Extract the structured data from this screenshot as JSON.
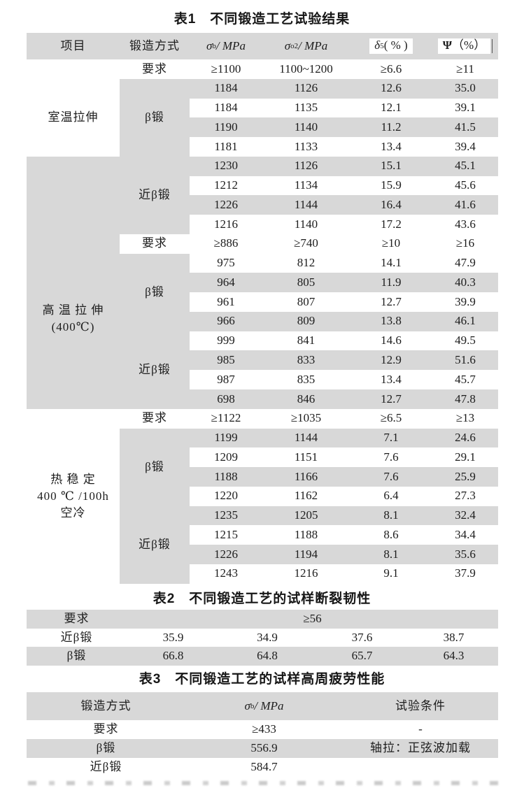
{
  "colors": {
    "row_shade": "#d8d8d8",
    "text": "#1d1d1d",
    "paper": "#ffffff"
  },
  "table1": {
    "title": "表1　不同锻造工艺试验结果",
    "header": {
      "item": "项目",
      "method": "锻造方式",
      "sigma_b": {
        "sym": "σ",
        "sub": "b",
        "unit": " / MPa"
      },
      "sigma_o2": {
        "sym": "σ",
        "sub": "o2",
        "unit": " / MPa"
      },
      "delta5": {
        "sym": "δ",
        "sub": "5",
        "unit": "( % )"
      },
      "psi": {
        "sym": "Ψ",
        "unit": "（%）"
      }
    },
    "req_label": "要求",
    "items": [
      {
        "name": "room-temp-tensile",
        "lines": [
          "室温拉伸"
        ]
      },
      {
        "name": "high-temp-tensile",
        "lines": [
          "高 温 拉 伸",
          "(400℃)"
        ]
      },
      {
        "name": "thermal-stability",
        "lines": [
          "热  稳  定",
          "400 ℃ /100h",
          "空冷"
        ]
      }
    ],
    "methods": {
      "beta": "β锻",
      "near_beta": "近β锻"
    },
    "rows": [
      {
        "kind": "req",
        "shade": false,
        "cells": [
          "≥1100",
          "1100~1200",
          "≥6.6",
          "≥11"
        ]
      },
      {
        "kind": "data",
        "shade": true,
        "cells": [
          "1184",
          "1126",
          "12.6",
          "35.0"
        ]
      },
      {
        "kind": "data",
        "shade": false,
        "cells": [
          "1184",
          "1135",
          "12.1",
          "39.1"
        ]
      },
      {
        "kind": "data",
        "shade": true,
        "cells": [
          "1190",
          "1140",
          "11.2",
          "41.5"
        ]
      },
      {
        "kind": "data",
        "shade": false,
        "cells": [
          "1181",
          "1133",
          "13.4",
          "39.4"
        ]
      },
      {
        "kind": "data",
        "shade": true,
        "cells": [
          "1230",
          "1126",
          "15.1",
          "45.1"
        ]
      },
      {
        "kind": "data",
        "shade": false,
        "cells": [
          "1212",
          "1134",
          "15.9",
          "45.6"
        ]
      },
      {
        "kind": "data",
        "shade": true,
        "cells": [
          "1226",
          "1144",
          "16.4",
          "41.6"
        ]
      },
      {
        "kind": "data",
        "shade": false,
        "cells": [
          "1216",
          "1140",
          "17.2",
          "43.6"
        ]
      },
      {
        "kind": "req",
        "shade": false,
        "cells": [
          "≥886",
          "≥740",
          "≥10",
          "≥16"
        ]
      },
      {
        "kind": "data",
        "shade": false,
        "cells": [
          "975",
          "812",
          "14.1",
          "47.9"
        ]
      },
      {
        "kind": "data",
        "shade": true,
        "cells": [
          "964",
          "805",
          "11.9",
          "40.3"
        ]
      },
      {
        "kind": "data",
        "shade": false,
        "cells": [
          "961",
          "807",
          "12.7",
          "39.9"
        ]
      },
      {
        "kind": "data",
        "shade": true,
        "cells": [
          "966",
          "809",
          "13.8",
          "46.1"
        ]
      },
      {
        "kind": "data",
        "shade": false,
        "cells": [
          "999",
          "841",
          "14.6",
          "49.5"
        ]
      },
      {
        "kind": "data",
        "shade": true,
        "cells": [
          "985",
          "833",
          "12.9",
          "51.6"
        ]
      },
      {
        "kind": "data",
        "shade": false,
        "cells": [
          "987",
          "835",
          "13.4",
          "45.7"
        ]
      },
      {
        "kind": "data",
        "shade": true,
        "cells": [
          "698",
          "846",
          "12.7",
          "47.8"
        ]
      },
      {
        "kind": "req",
        "shade": false,
        "cells": [
          "≥1122",
          "≥1035",
          "≥6.5",
          "≥13"
        ]
      },
      {
        "kind": "data",
        "shade": true,
        "cells": [
          "1199",
          "1144",
          "7.1",
          "24.6"
        ]
      },
      {
        "kind": "data",
        "shade": false,
        "cells": [
          "1209",
          "1151",
          "7.6",
          "29.1"
        ]
      },
      {
        "kind": "data",
        "shade": true,
        "cells": [
          "1188",
          "1166",
          "7.6",
          "25.9"
        ]
      },
      {
        "kind": "data",
        "shade": false,
        "cells": [
          "1220",
          "1162",
          "6.4",
          "27.3"
        ]
      },
      {
        "kind": "data",
        "shade": true,
        "cells": [
          "1235",
          "1205",
          "8.1",
          "32.4"
        ]
      },
      {
        "kind": "data",
        "shade": false,
        "cells": [
          "1215",
          "1188",
          "8.6",
          "34.4"
        ]
      },
      {
        "kind": "data",
        "shade": true,
        "cells": [
          "1226",
          "1194",
          "8.1",
          "35.6"
        ]
      },
      {
        "kind": "data",
        "shade": false,
        "cells": [
          "1243",
          "1216",
          "9.1",
          "37.9"
        ]
      }
    ]
  },
  "table2": {
    "title": "表2　不同锻造工艺的试样断裂韧性",
    "req_label": "要求",
    "req_value": "≥56",
    "rows": [
      {
        "method": "近β锻",
        "values": [
          "35.9",
          "34.9",
          "37.6",
          "38.7"
        ]
      },
      {
        "method": "β锻",
        "values": [
          "66.8",
          "64.8",
          "65.7",
          "64.3"
        ]
      }
    ]
  },
  "table3": {
    "title": "表3　不同锻造工艺的试样高周疲劳性能",
    "header": {
      "method": "锻造方式",
      "sigma_b": {
        "sym": "σ",
        "sub": "b",
        "unit": " / MPa"
      },
      "condition": "试验条件"
    },
    "rows": [
      {
        "method": "要求",
        "value": "≥433",
        "condition": "-"
      },
      {
        "method": "β锻",
        "value": "556.9",
        "condition": "轴拉：正弦波加载"
      },
      {
        "method": "近β锻",
        "value": "584.7",
        "condition": ""
      }
    ]
  }
}
